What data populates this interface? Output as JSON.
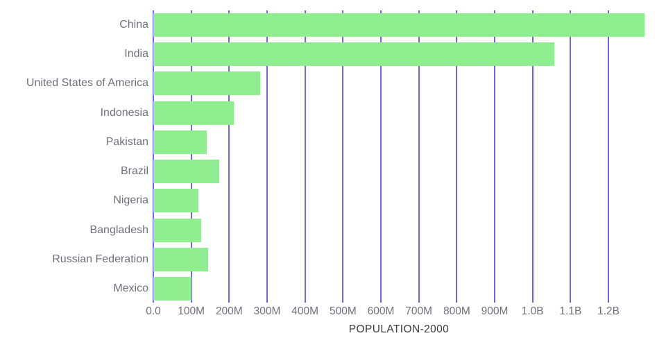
{
  "chart_data": {
    "type": "bar",
    "orientation": "horizontal",
    "title": "",
    "xlabel": "POPULATION-2000",
    "ylabel": "",
    "categories": [
      "China",
      "India",
      "United States of America",
      "Indonesia",
      "Pakistan",
      "Brazil",
      "Nigeria",
      "Bangladesh",
      "Russian Federation",
      "Mexico"
    ],
    "values": [
      1295000000,
      1057000000,
      282000000,
      212000000,
      140000000,
      173000000,
      119000000,
      126000000,
      145000000,
      101000000
    ],
    "x_ticks": [
      {
        "label": "0.0",
        "value": 0
      },
      {
        "label": "100M",
        "value": 100000000
      },
      {
        "label": "200M",
        "value": 200000000
      },
      {
        "label": "300M",
        "value": 300000000
      },
      {
        "label": "400M",
        "value": 400000000
      },
      {
        "label": "500M",
        "value": 500000000
      },
      {
        "label": "600M",
        "value": 600000000
      },
      {
        "label": "700M",
        "value": 700000000
      },
      {
        "label": "800M",
        "value": 800000000
      },
      {
        "label": "900M",
        "value": 900000000
      },
      {
        "label": "1.0B",
        "value": 1000000000
      },
      {
        "label": "1.1B",
        "value": 1100000000
      },
      {
        "label": "1.2B",
        "value": 1200000000
      }
    ],
    "xlim": [
      0,
      1295000000
    ],
    "grid": true,
    "legend": false,
    "colors": {
      "bar": "#90ee90",
      "gridline": "#6d63f2",
      "label": "#71707b",
      "axis_title": "#3a3a40",
      "background": "#ffffff"
    }
  }
}
